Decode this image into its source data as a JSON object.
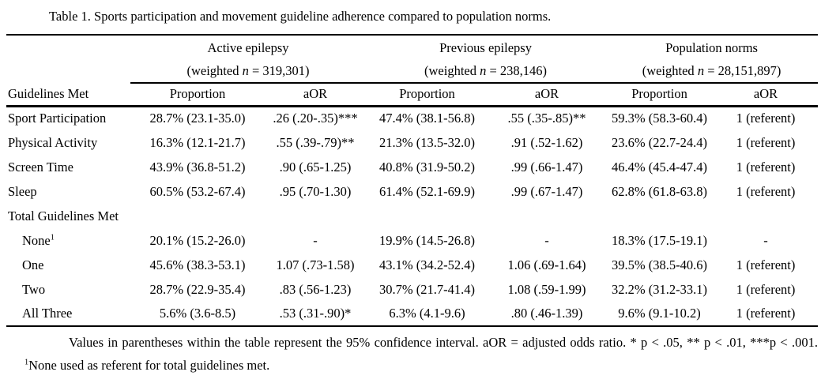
{
  "title": "Table 1. Sports participation and movement guideline adherence compared to population norms.",
  "colors": {
    "background": "#ffffff",
    "text": "#000000",
    "rule": "#000000"
  },
  "table": {
    "row_header": "Guidelines Met",
    "groups": [
      {
        "name": "Active epilepsy",
        "weighted_prefix": "(weighted ",
        "n_italic": "n",
        "weighted_suffix": " = 319,301)"
      },
      {
        "name": "Previous epilepsy",
        "weighted_prefix": "(weighted ",
        "n_italic": "n",
        "weighted_suffix": " = 238,146)"
      },
      {
        "name": "Population norms",
        "weighted_prefix": "(weighted ",
        "n_italic": "n",
        "weighted_suffix": " = 28,151,897)"
      }
    ],
    "col_headers": [
      "Proportion",
      "aOR",
      "Proportion",
      "aOR",
      "Proportion",
      "aOR"
    ],
    "rows": [
      {
        "label": "Sport Participation",
        "indent": false,
        "section": false,
        "cells": [
          "28.7% (23.1-35.0)",
          ".26 (.20-.35)***",
          "47.4% (38.1-56.8)",
          ".55 (.35-.85)**",
          "59.3% (58.3-60.4)",
          "1 (referent)"
        ]
      },
      {
        "label": "Physical Activity",
        "indent": false,
        "section": false,
        "cells": [
          "16.3% (12.1-21.7)",
          ".55 (.39-.79)**",
          "21.3% (13.5-32.0)",
          ".91 (.52-1.62)",
          "23.6% (22.7-24.4)",
          "1 (referent)"
        ]
      },
      {
        "label": "Screen Time",
        "indent": false,
        "section": false,
        "cells": [
          "43.9% (36.8-51.2)",
          ".90 (.65-1.25)",
          "40.8% (31.9-50.2)",
          ".99 (.66-1.47)",
          "46.4% (45.4-47.4)",
          "1 (referent)"
        ]
      },
      {
        "label": "Sleep",
        "indent": false,
        "section": false,
        "cells": [
          "60.5% (53.2-67.4)",
          ".95 (.70-1.30)",
          "61.4% (52.1-69.9)",
          ".99 (.67-1.47)",
          "62.8% (61.8-63.8)",
          "1 (referent)"
        ]
      },
      {
        "label": "Total Guidelines Met",
        "indent": false,
        "section": true,
        "cells": [
          "",
          "",
          "",
          "",
          "",
          ""
        ]
      },
      {
        "label": "None",
        "sup": "1",
        "indent": true,
        "section": false,
        "cells": [
          "20.1% (15.2-26.0)",
          "-",
          "19.9% (14.5-26.8)",
          "-",
          "18.3% (17.5-19.1)",
          "-"
        ]
      },
      {
        "label": "One",
        "indent": true,
        "section": false,
        "cells": [
          "45.6% (38.3-53.1)",
          "1.07 (.73-1.58)",
          "43.1% (34.2-52.4)",
          "1.06 (.69-1.64)",
          "39.5% (38.5-40.6)",
          "1 (referent)"
        ]
      },
      {
        "label": "Two",
        "indent": true,
        "section": false,
        "cells": [
          "28.7% (22.9-35.4)",
          ".83 (.56-1.23)",
          "30.7% (21.7-41.4)",
          "1.08 (.59-1.99)",
          "32.2% (31.2-33.1)",
          "1 (referent)"
        ]
      },
      {
        "label": "All Three",
        "indent": true,
        "section": false,
        "cells": [
          "5.6% (3.6-8.5)",
          ".53 (.31-.90)*",
          "6.3% (4.1-9.6)",
          ".80 (.46-1.39)",
          "9.6% (9.1-10.2)",
          "1 (referent)"
        ]
      }
    ]
  },
  "footnote": {
    "part1": "Values in parentheses within the table represent the 95% confidence interval. aOR = adjusted odds ratio. * p < .05, ** p < .01, ***p < .001. ",
    "sup": "1",
    "part2": "None used as referent for total guidelines met."
  }
}
